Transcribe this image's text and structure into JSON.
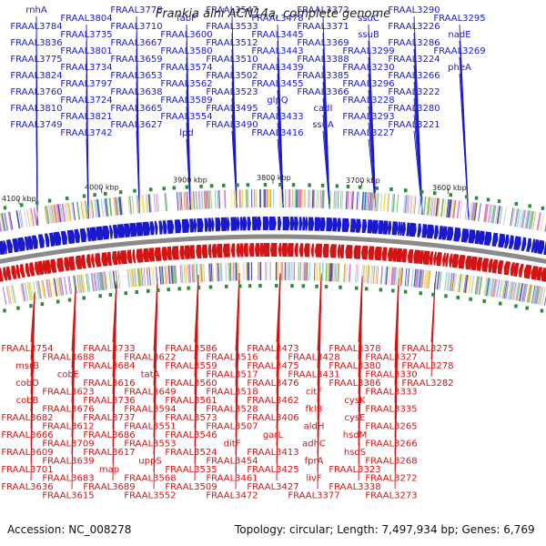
{
  "title": "Frankia alni ACN14a, complete genome",
  "accession_label": "Accession: NC_008278",
  "topology_label": "Topology: circular; Length: 7,497,934 bp; Genes: 6,769",
  "colors": {
    "forward": "#1a1acc",
    "reverse": "#d21414",
    "backbone": "#8a8a8a"
  },
  "ticks": [
    "4100 kbp",
    "4000 kbp",
    "3900 kbp",
    "3800 kbp",
    "3700 kbp",
    "3600 kbp"
  ],
  "forward_genes": [
    "rnhA",
    "FRAAL3784",
    "FRAAL3836",
    "FRAAL3775",
    "FRAAL3824",
    "FRAAL3760",
    "FRAAL3810",
    "FRAAL3749",
    "FRAAL3804",
    "FRAAL3735",
    "FRAAL3801",
    "FRAAL3734",
    "FRAAL3797",
    "FRAAL3724",
    "FRAAL3821",
    "FRAAL3742",
    "FRAAL3778",
    "FRAAL3710",
    "FRAAL3667",
    "FRAAL3659",
    "FRAAL3653",
    "FRAAL3638",
    "FRAAL3665",
    "FRAAL3627",
    "fabF",
    "FRAAL3600",
    "FRAAL3580",
    "FRAAL3574",
    "FRAAL3562",
    "FRAAL3589",
    "FRAAL3554",
    "lpd",
    "FRAAL3547",
    "FRAAL3533",
    "FRAAL3512",
    "FRAAL3510",
    "FRAAL3502",
    "FRAAL3523",
    "FRAAL3495",
    "FRAAL3490",
    "FRAAL3478",
    "FRAAL3445",
    "FRAAL3443",
    "FRAAL3439",
    "FRAAL3455",
    "glpQ",
    "FRAAL3433",
    "FRAAL3416",
    "FRAAL3372",
    "FRAAL3371",
    "FRAAL3369",
    "FRAAL3388",
    "FRAAL3385",
    "FRAAL3366",
    "cadI",
    "ssuA",
    "ssuC",
    "ssuB",
    "FRAAL3299",
    "FRAAL3230",
    "FRAAL3296",
    "FRAAL3228",
    "FRAAL3293",
    "FRAAL3227",
    "FRAAL3290",
    "FRAAL3226",
    "FRAAL3286",
    "FRAAL3224",
    "FRAAL3266",
    "FRAAL3222",
    "FRAAL3280",
    "FRAAL3221",
    "FRAAL3295",
    "nadE",
    "FRAAL3269",
    "pheA"
  ],
  "reverse_genes": [
    "FRAAL3754",
    "msrB",
    "cobO",
    "cobB",
    "FRAAL3682",
    "FRAAL3666",
    "FRAAL3609",
    "FRAAL3701",
    "FRAAL3636",
    "FRAAL3688",
    "cobE",
    "FRAAL3623",
    "FRAAL3676",
    "FRAAL3612",
    "FRAAL3709",
    "FRAAL3639",
    "FRAAL3683",
    "FRAAL3615",
    "FRAAL3733",
    "FRAAL3684",
    "FRAAL3616",
    "FRAAL3736",
    "FRAAL3737",
    "FRAAL3686",
    "FRAAL3617",
    "map",
    "FRAAL3689",
    "FRAAL3622",
    "tatA",
    "FRAAL3649",
    "FRAAL3594",
    "FRAAL3551",
    "FRAAL3553",
    "uppS",
    "FRAAL3568",
    "FRAAL3552",
    "FRAAL3586",
    "FRAAL3559",
    "FRAAL3560",
    "FRAAL3561",
    "FRAAL3573",
    "FRAAL3546",
    "FRAAL3524",
    "FRAAL3535",
    "FRAAL3509",
    "FRAAL3516",
    "FRAAL3517",
    "FRAAL3518",
    "FRAAL3528",
    "FRAAL3507",
    "ditF",
    "FRAAL3454",
    "FRAAL3461",
    "FRAAL3472",
    "FRAAL3473",
    "FRAAL3475",
    "FRAAL3476",
    "FRAAL3462",
    "FRAAL3406",
    "garL",
    "FRAAL3413",
    "FRAAL3425",
    "FRAAL3427",
    "FRAAL3428",
    "FRAAL3431",
    "citF",
    "fklB",
    "aldH",
    "adhC",
    "fprA",
    "livF",
    "FRAAL3377",
    "FRAAL3378",
    "FRAAL3380",
    "FRAAL3386",
    "cysK",
    "cysE",
    "hsdM",
    "hsdS",
    "FRAAL3323",
    "FRAAL3338",
    "FRAAL3327",
    "FRAAL3330",
    "FRAAL3333",
    "FRAAL3335",
    "FRAAL3265",
    "FRAAL3266",
    "FRAAL3268",
    "FRAAL3272",
    "FRAAL3273",
    "FRAAL3275",
    "FRAAL3278",
    "FRAAL3282"
  ]
}
